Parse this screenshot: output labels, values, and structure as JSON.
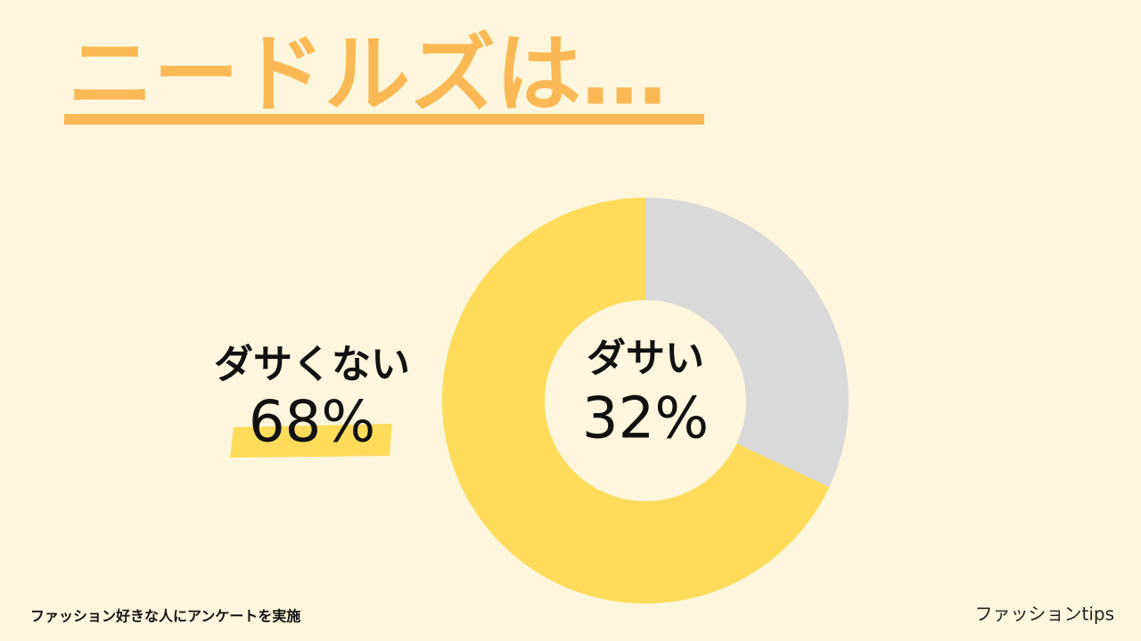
{
  "chart_data": {
    "type": "donut",
    "title": "ニードルズは…",
    "categories": [
      "ダサくない",
      "ダサい"
    ],
    "values": [
      68,
      32
    ],
    "value_labels": [
      "68%",
      "32%"
    ],
    "colors": [
      "#fddc5c",
      "#d9d9d9"
    ]
  },
  "footer": {
    "note": "ファッション好きな人にアンケートを実施",
    "brand": "ファッションtips"
  }
}
